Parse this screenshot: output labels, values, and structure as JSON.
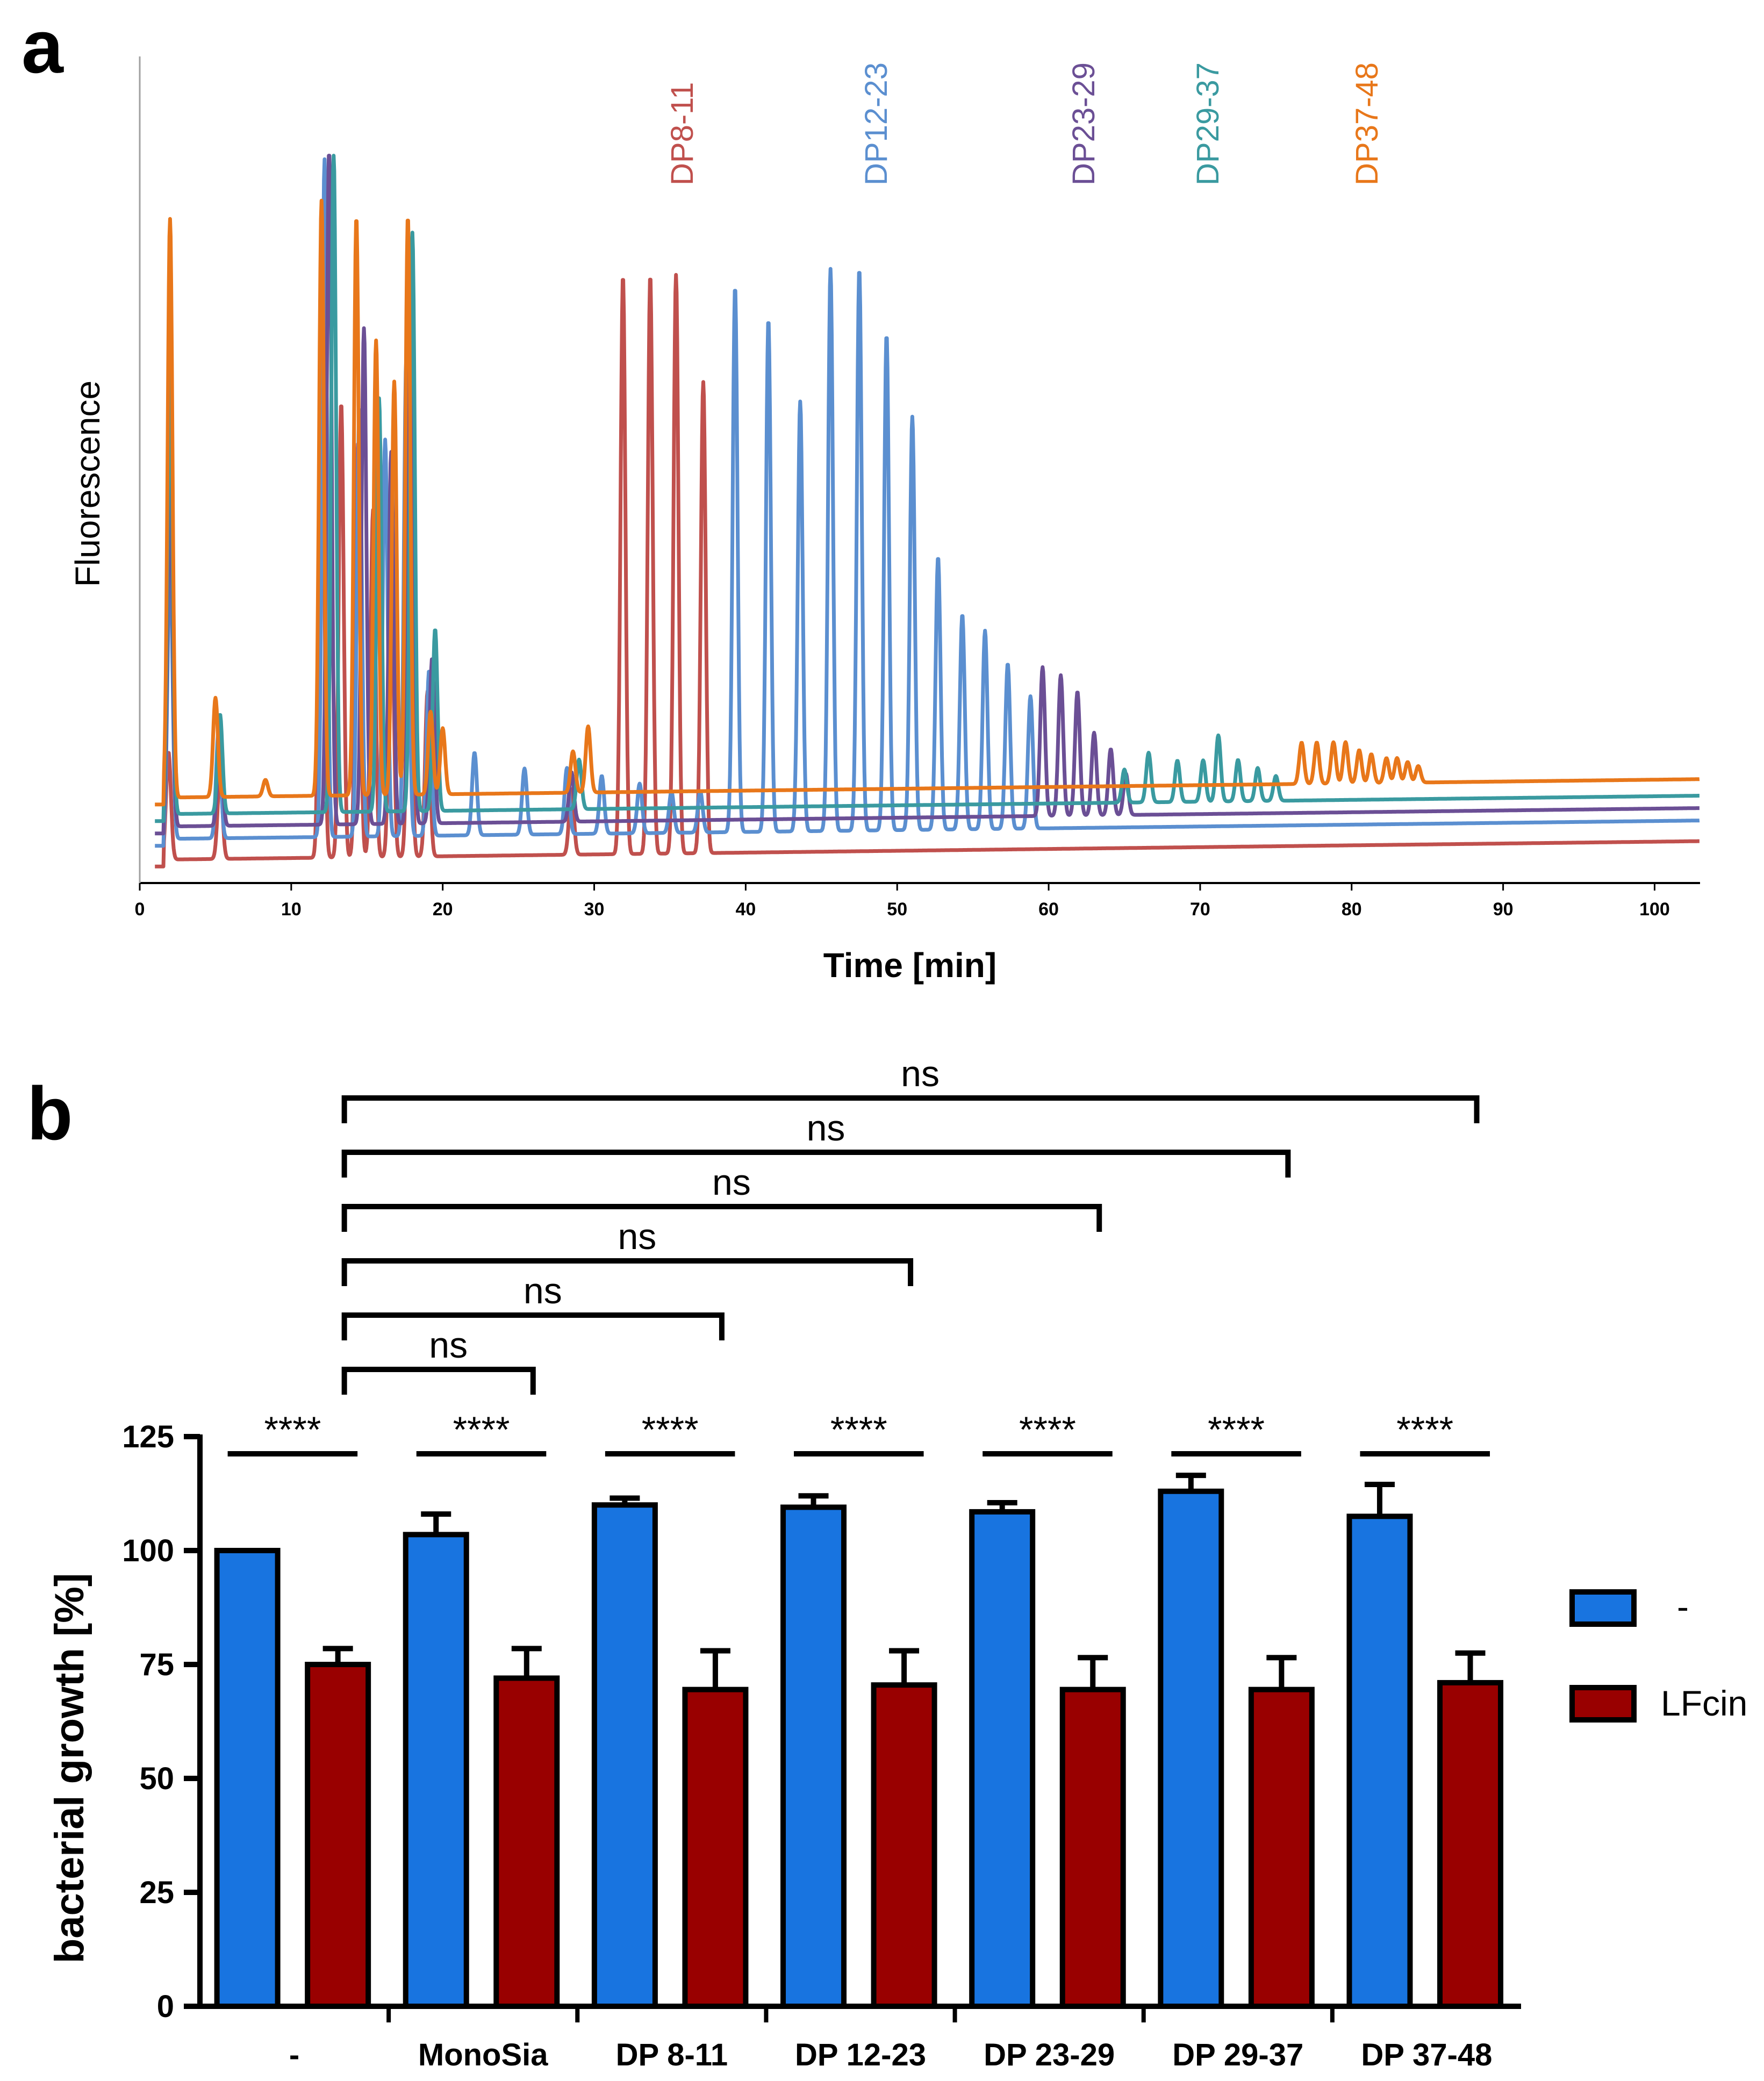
{
  "panels": {
    "a": "a",
    "b": "b"
  },
  "chart_data": [
    {
      "type": "line",
      "panel": "a",
      "title": "",
      "xlabel": "Time [min]",
      "ylabel": "Fluorescence",
      "xlim": [
        0,
        103
      ],
      "ylim": [
        0,
        1
      ],
      "xticks": [
        0,
        10,
        20,
        30,
        40,
        50,
        60,
        70,
        80,
        90,
        100
      ],
      "grid": false,
      "series": [
        {
          "name": "DP8-11",
          "color": "#c0504d",
          "offset": 0.0,
          "peaks": [
            [
              1.9,
              0.13
            ],
            [
              5.3,
              0.1
            ],
            [
              12.0,
              0.72
            ],
            [
              13.3,
              0.55
            ],
            [
              14.4,
              0.5
            ],
            [
              15.4,
              0.42
            ],
            [
              16.6,
              0.35
            ],
            [
              17.8,
              0.34
            ],
            [
              19.0,
              0.2
            ],
            [
              28.5,
              0.08
            ],
            [
              31.9,
              0.7
            ],
            [
              33.7,
              0.7
            ],
            [
              35.4,
              0.7
            ],
            [
              37.2,
              0.57
            ]
          ]
        },
        {
          "name": "DP12-23",
          "color": "#5b8fd0",
          "offset": 0.025,
          "peaks": [
            [
              2.0,
              0.35
            ],
            [
              5.2,
              0.13
            ],
            [
              12.2,
              0.82
            ],
            [
              14.5,
              0.52
            ],
            [
              16.2,
              0.48
            ],
            [
              17.6,
              0.58
            ],
            [
              19.1,
              0.2
            ],
            [
              22.1,
              0.1
            ],
            [
              25.4,
              0.08
            ],
            [
              28.2,
              0.08
            ],
            [
              30.5,
              0.07
            ],
            [
              33.0,
              0.06
            ],
            [
              35.1,
              0.05
            ],
            [
              37.0,
              0.05
            ],
            [
              39.3,
              0.66
            ],
            [
              41.5,
              0.62
            ],
            [
              43.6,
              0.52
            ],
            [
              45.6,
              0.68
            ],
            [
              47.5,
              0.68
            ],
            [
              49.3,
              0.6
            ],
            [
              51.0,
              0.5
            ],
            [
              52.7,
              0.33
            ],
            [
              54.3,
              0.26
            ],
            [
              55.8,
              0.24
            ],
            [
              57.3,
              0.2
            ],
            [
              58.8,
              0.16
            ]
          ]
        },
        {
          "name": "DP23-29",
          "color": "#6b4f95",
          "offset": 0.04,
          "peaks": [
            [
              2.0,
              0.42
            ],
            [
              5.3,
              0.12
            ],
            [
              12.5,
              0.82
            ],
            [
              14.8,
              0.6
            ],
            [
              16.6,
              0.45
            ],
            [
              17.9,
              0.7
            ],
            [
              19.3,
              0.2
            ],
            [
              28.5,
              0.06
            ],
            [
              59.6,
              0.18
            ],
            [
              60.8,
              0.17
            ],
            [
              61.9,
              0.15
            ],
            [
              63.0,
              0.1
            ],
            [
              64.1,
              0.08
            ],
            [
              65.1,
              0.05
            ]
          ]
        },
        {
          "name": "DP29-37",
          "color": "#3a9aa0",
          "offset": 0.055,
          "peaks": [
            [
              2.0,
              0.55
            ],
            [
              5.3,
              0.12
            ],
            [
              12.8,
              0.8
            ],
            [
              15.8,
              0.5
            ],
            [
              18.0,
              0.7
            ],
            [
              19.5,
              0.22
            ],
            [
              29.0,
              0.06
            ],
            [
              65.0,
              0.04
            ],
            [
              66.6,
              0.06
            ],
            [
              68.5,
              0.05
            ],
            [
              70.2,
              0.05
            ],
            [
              71.2,
              0.08
            ],
            [
              72.5,
              0.05
            ],
            [
              73.8,
              0.04
            ],
            [
              75.0,
              0.03
            ]
          ]
        },
        {
          "name": "DP37-48",
          "color": "#e8771a",
          "offset": 0.075,
          "peaks": [
            [
              2.0,
              0.7
            ],
            [
              5.0,
              0.12
            ],
            [
              8.3,
              0.02
            ],
            [
              12.0,
              0.72
            ],
            [
              14.3,
              0.7
            ],
            [
              15.6,
              0.55
            ],
            [
              16.8,
              0.5
            ],
            [
              17.7,
              0.7
            ],
            [
              19.2,
              0.1
            ],
            [
              20.0,
              0.08
            ],
            [
              28.6,
              0.05
            ],
            [
              29.6,
              0.08
            ],
            [
              76.7,
              0.05
            ],
            [
              77.7,
              0.05
            ],
            [
              78.8,
              0.05
            ],
            [
              79.6,
              0.05
            ],
            [
              80.5,
              0.04
            ],
            [
              81.3,
              0.035
            ],
            [
              82.3,
              0.03
            ],
            [
              83.0,
              0.03
            ],
            [
              83.7,
              0.025
            ],
            [
              84.4,
              0.02
            ]
          ]
        }
      ],
      "annotations": [
        "DP8-11",
        "DP12-23",
        "DP23-29",
        "DP29-37",
        "DP37-48"
      ]
    },
    {
      "type": "bar",
      "panel": "b",
      "title": "",
      "xlabel": "",
      "ylabel": "bacterial growth [%]",
      "ylim": [
        0,
        125
      ],
      "yticks": [
        0,
        25,
        50,
        75,
        100,
        125
      ],
      "categories": [
        "-",
        "MonoSia",
        "DP 8-11",
        "DP 12-23",
        "DP 23-29",
        "DP 29-37",
        "DP 37-48"
      ],
      "series": [
        {
          "name": "-",
          "color": "#1874e0",
          "values": [
            100,
            103.5,
            110,
            109.5,
            108.5,
            113,
            107.5
          ],
          "errors": [
            0,
            4.5,
            1.5,
            2.5,
            2.0,
            3.5,
            7.0
          ]
        },
        {
          "name": "LFcin",
          "color": "#990000",
          "values": [
            75,
            72,
            69.5,
            70.5,
            69.5,
            69.5,
            71
          ],
          "errors": [
            3.5,
            6.5,
            8.5,
            7.5,
            7.0,
            7.0,
            6.5
          ]
        }
      ],
      "legend": {
        "placement": "right",
        "entries": [
          "-",
          "LFcin"
        ]
      },
      "significance": [
        {
          "label": "****",
          "type": "within",
          "group": 0
        },
        {
          "label": "****",
          "type": "within",
          "group": 1
        },
        {
          "label": "****",
          "type": "within",
          "group": 2
        },
        {
          "label": "****",
          "type": "within",
          "group": 3
        },
        {
          "label": "****",
          "type": "within",
          "group": 4
        },
        {
          "label": "****",
          "type": "within",
          "group": 5
        },
        {
          "label": "****",
          "type": "within",
          "group": 6
        },
        {
          "label": "ns",
          "type": "between",
          "from": 0,
          "to": 1
        },
        {
          "label": "ns",
          "type": "between",
          "from": 0,
          "to": 2
        },
        {
          "label": "ns",
          "type": "between",
          "from": 0,
          "to": 3
        },
        {
          "label": "ns",
          "type": "between",
          "from": 0,
          "to": 4
        },
        {
          "label": "ns",
          "type": "between",
          "from": 0,
          "to": 5
        },
        {
          "label": "ns",
          "type": "between",
          "from": 0,
          "to": 6
        }
      ]
    }
  ]
}
